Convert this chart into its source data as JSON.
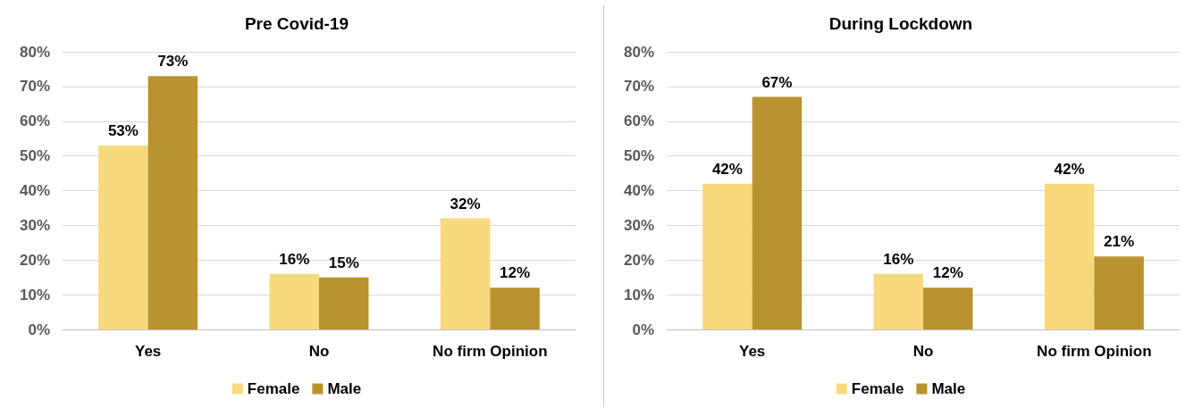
{
  "chart_data": [
    {
      "type": "bar",
      "title": "Pre Covid-19",
      "categories": [
        "Yes",
        "No",
        "No firm Opinion"
      ],
      "series": [
        {
          "name": "Female",
          "color": "#f7d97e",
          "values": [
            53,
            16,
            32
          ],
          "value_labels": [
            "53%",
            "16%",
            "32%"
          ]
        },
        {
          "name": "Male",
          "color": "#b8932f",
          "values": [
            73,
            15,
            12
          ],
          "value_labels": [
            "73%",
            "15%",
            "12%"
          ]
        }
      ],
      "ylim": [
        0,
        80
      ],
      "yticks": [
        {
          "value": 0,
          "label": "0%"
        },
        {
          "value": 10,
          "label": "10%"
        },
        {
          "value": 20,
          "label": "20%"
        },
        {
          "value": 30,
          "label": "30%"
        },
        {
          "value": 40,
          "label": "40%"
        },
        {
          "value": 50,
          "label": "50%"
        },
        {
          "value": 60,
          "label": "60%"
        },
        {
          "value": 70,
          "label": "70%"
        },
        {
          "value": 80,
          "label": "80%"
        }
      ],
      "grid": "y",
      "legend": "bottom"
    },
    {
      "type": "bar",
      "title": "During Lockdown",
      "categories": [
        "Yes",
        "No",
        "No firm Opinion"
      ],
      "series": [
        {
          "name": "Female",
          "color": "#f7d97e",
          "values": [
            42,
            16,
            42
          ],
          "value_labels": [
            "42%",
            "16%",
            "42%"
          ]
        },
        {
          "name": "Male",
          "color": "#b8932f",
          "values": [
            67,
            12,
            21
          ],
          "value_labels": [
            "67%",
            "12%",
            "21%"
          ]
        }
      ],
      "ylim": [
        0,
        80
      ],
      "yticks": [
        {
          "value": 0,
          "label": "0%"
        },
        {
          "value": 10,
          "label": "10%"
        },
        {
          "value": 20,
          "label": "20%"
        },
        {
          "value": 30,
          "label": "30%"
        },
        {
          "value": 40,
          "label": "40%"
        },
        {
          "value": 50,
          "label": "50%"
        },
        {
          "value": 60,
          "label": "60%"
        },
        {
          "value": 70,
          "label": "70%"
        },
        {
          "value": 80,
          "label": "80%"
        }
      ],
      "grid": "y",
      "legend": "bottom"
    }
  ]
}
